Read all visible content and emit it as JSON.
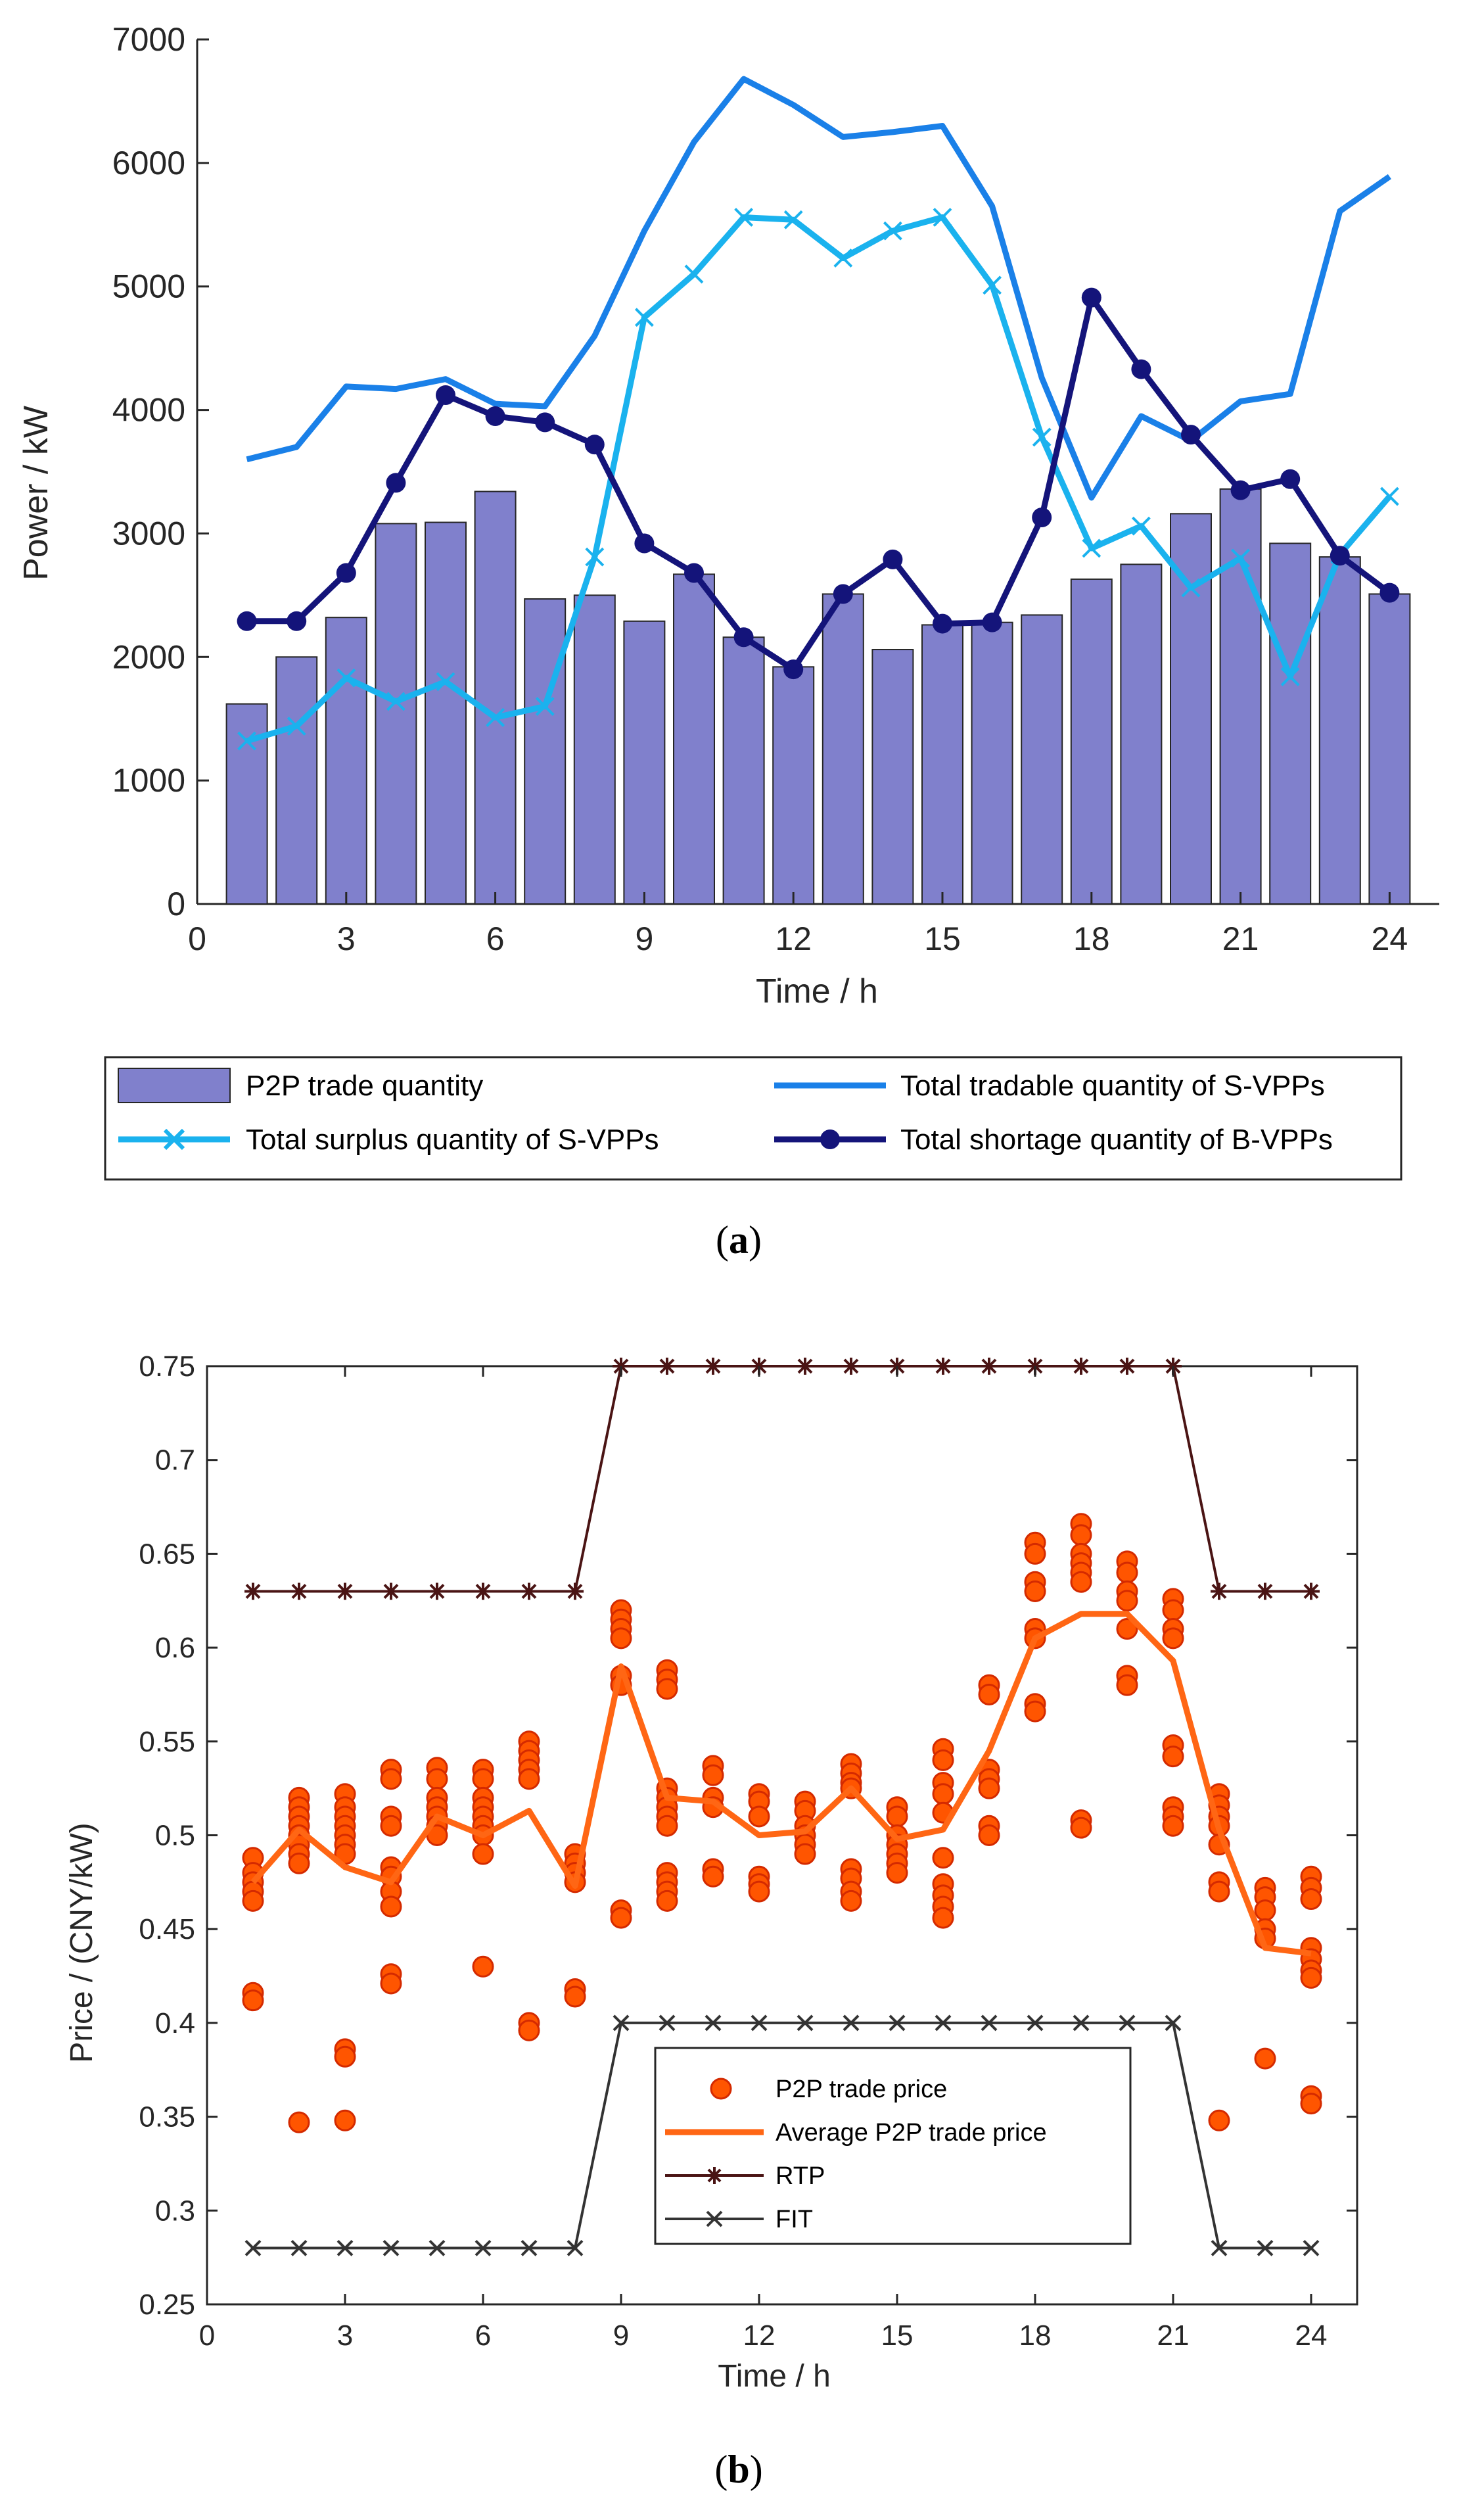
{
  "chart_data": [
    {
      "id": "a",
      "type": "bar+line",
      "caption_letter": "a",
      "caption_open": "(",
      "caption_close": ")",
      "xlabel": "Time / h",
      "ylabel": "Power / kW",
      "xlim": [
        0,
        25
      ],
      "ylim": [
        0,
        7000
      ],
      "xticks": [
        0,
        3,
        6,
        9,
        12,
        15,
        18,
        21,
        24
      ],
      "yticks": [
        0,
        1000,
        2000,
        3000,
        4000,
        5000,
        6000,
        7000
      ],
      "x": [
        1,
        2,
        3,
        4,
        5,
        6,
        7,
        8,
        9,
        10,
        11,
        12,
        13,
        14,
        15,
        16,
        17,
        18,
        19,
        20,
        21,
        22,
        23,
        24
      ],
      "bars": {
        "name": "P2P trade quantity",
        "color": "#8080CC",
        "values": [
          1620,
          2000,
          2320,
          3080,
          3090,
          3340,
          2470,
          2500,
          2290,
          2670,
          2160,
          1920,
          2510,
          2060,
          2260,
          2280,
          2340,
          2630,
          2750,
          3160,
          3360,
          2920,
          2810,
          2510
        ]
      },
      "series": [
        {
          "name": "Total tradable quantity of S-VPPs",
          "color": "#1A80E8",
          "marker": "none",
          "values": [
            3600,
            3700,
            4190,
            4170,
            4250,
            4050,
            4030,
            4600,
            5450,
            6170,
            6680,
            6470,
            6210,
            6250,
            6300,
            5650,
            4260,
            3290,
            3950,
            3750,
            4070,
            4130,
            5610,
            5890
          ]
        },
        {
          "name": "Total surplus quantity of S-VPPs",
          "color": "#1AB2EE",
          "marker": "x",
          "values": [
            1320,
            1440,
            1830,
            1640,
            1800,
            1510,
            1600,
            2810,
            4750,
            5100,
            5560,
            5540,
            5230,
            5450,
            5560,
            5010,
            3780,
            2880,
            3060,
            2560,
            2800,
            1840,
            2830,
            3300
          ]
        },
        {
          "name": "Total shortage quantity of B-VPPs",
          "color": "#14147A",
          "marker": "circle",
          "values": [
            2290,
            2290,
            2680,
            3410,
            4120,
            3950,
            3900,
            3720,
            2920,
            2680,
            2160,
            1900,
            2510,
            2790,
            2270,
            2280,
            3130,
            4910,
            4330,
            3800,
            3350,
            3440,
            2820,
            2520
          ]
        }
      ],
      "legend": "below"
    },
    {
      "id": "b",
      "type": "scatter+line",
      "caption_letter": "b",
      "caption_open": "(",
      "caption_close": ")",
      "xlabel": "Time / h",
      "ylabel": "Price / (CNY/kW)",
      "xlim": [
        0,
        25
      ],
      "ylim": [
        0.25,
        0.75
      ],
      "xticks": [
        0,
        3,
        6,
        9,
        12,
        15,
        18,
        21,
        24
      ],
      "yticks": [
        0.25,
        0.3,
        0.35,
        0.4,
        0.45,
        0.5,
        0.55,
        0.6,
        0.65,
        0.7,
        0.75
      ],
      "ytick_labels": [
        "0.25",
        "0.3",
        "0.35",
        "0.4",
        "0.45",
        "0.5",
        "0.55",
        "0.6",
        "0.65",
        "0.7",
        "0.75"
      ],
      "x": [
        1,
        2,
        3,
        4,
        5,
        6,
        7,
        8,
        9,
        10,
        11,
        12,
        13,
        14,
        15,
        16,
        17,
        18,
        19,
        20,
        21,
        22,
        23,
        24
      ],
      "scatter": {
        "name": "P2P trade price",
        "color": "#FF5500",
        "edge": "#D42A00",
        "points": [
          [
            0.488,
            0.48,
            0.475,
            0.47,
            0.465,
            0.416,
            0.412
          ],
          [
            0.52,
            0.515,
            0.51,
            0.505,
            0.5,
            0.495,
            0.49,
            0.485,
            0.347
          ],
          [
            0.522,
            0.515,
            0.51,
            0.505,
            0.5,
            0.495,
            0.49,
            0.386,
            0.382,
            0.348
          ],
          [
            0.535,
            0.53,
            0.51,
            0.505,
            0.483,
            0.478,
            0.47,
            0.462,
            0.426,
            0.421
          ],
          [
            0.536,
            0.53,
            0.52,
            0.515,
            0.51,
            0.505,
            0.5
          ],
          [
            0.535,
            0.53,
            0.52,
            0.515,
            0.51,
            0.505,
            0.5,
            0.49,
            0.43
          ],
          [
            0.55,
            0.545,
            0.54,
            0.535,
            0.53,
            0.4,
            0.396
          ],
          [
            0.49,
            0.485,
            0.48,
            0.475,
            0.418,
            0.414
          ],
          [
            0.62,
            0.615,
            0.61,
            0.605,
            0.585,
            0.58,
            0.46,
            0.456
          ],
          [
            0.588,
            0.583,
            0.578,
            0.525,
            0.52,
            0.515,
            0.51,
            0.505,
            0.48,
            0.475,
            0.47,
            0.465
          ],
          [
            0.537,
            0.532,
            0.52,
            0.515,
            0.482,
            0.478
          ],
          [
            0.522,
            0.518,
            0.51,
            0.478,
            0.474,
            0.47
          ],
          [
            0.518,
            0.513,
            0.505,
            0.5,
            0.495,
            0.49
          ],
          [
            0.538,
            0.533,
            0.528,
            0.525,
            0.482,
            0.477,
            0.47,
            0.465
          ],
          [
            0.515,
            0.51,
            0.5,
            0.495,
            0.49,
            0.485,
            0.48
          ],
          [
            0.546,
            0.54,
            0.528,
            0.522,
            0.512,
            0.488,
            0.474,
            0.468,
            0.462,
            0.456
          ],
          [
            0.58,
            0.575,
            0.535,
            0.53,
            0.525,
            0.505,
            0.5
          ],
          [
            0.656,
            0.65,
            0.635,
            0.63,
            0.61,
            0.605,
            0.57,
            0.566
          ],
          [
            0.666,
            0.66,
            0.65,
            0.645,
            0.64,
            0.635,
            0.508,
            0.504
          ],
          [
            0.646,
            0.64,
            0.63,
            0.625,
            0.61,
            0.585,
            0.58
          ],
          [
            0.626,
            0.62,
            0.61,
            0.605,
            0.548,
            0.542,
            0.515,
            0.51,
            0.505
          ],
          [
            0.522,
            0.516,
            0.51,
            0.505,
            0.495,
            0.475,
            0.47,
            0.348
          ],
          [
            0.472,
            0.467,
            0.46,
            0.45,
            0.445,
            0.381
          ],
          [
            0.478,
            0.472,
            0.466,
            0.44,
            0.434,
            0.428,
            0.424,
            0.361,
            0.357
          ]
        ]
      },
      "series": [
        {
          "name": "Average P2P trade price",
          "color": "#FF6614",
          "marker": "none",
          "values": [
            0.475,
            0.503,
            0.483,
            0.475,
            0.51,
            0.5,
            0.513,
            0.473,
            0.59,
            0.52,
            0.518,
            0.5,
            0.502,
            0.525,
            0.498,
            0.503,
            0.545,
            0.605,
            0.618,
            0.618,
            0.593,
            0.503,
            0.44,
            0.437
          ]
        },
        {
          "name": "RTP",
          "color": "#4A1414",
          "marker": "asterisk",
          "values": [
            0.63,
            0.63,
            0.63,
            0.63,
            0.63,
            0.63,
            0.63,
            0.63,
            0.75,
            0.75,
            0.75,
            0.75,
            0.75,
            0.75,
            0.75,
            0.75,
            0.75,
            0.75,
            0.75,
            0.75,
            0.75,
            0.63,
            0.63,
            0.63
          ]
        },
        {
          "name": "FIT",
          "color": "#333333",
          "marker": "x",
          "values": [
            0.28,
            0.28,
            0.28,
            0.28,
            0.28,
            0.28,
            0.28,
            0.28,
            0.4,
            0.4,
            0.4,
            0.4,
            0.4,
            0.4,
            0.4,
            0.4,
            0.4,
            0.4,
            0.4,
            0.4,
            0.4,
            0.28,
            0.28,
            0.28
          ]
        }
      ],
      "legend": "inside-bottom-center"
    }
  ]
}
